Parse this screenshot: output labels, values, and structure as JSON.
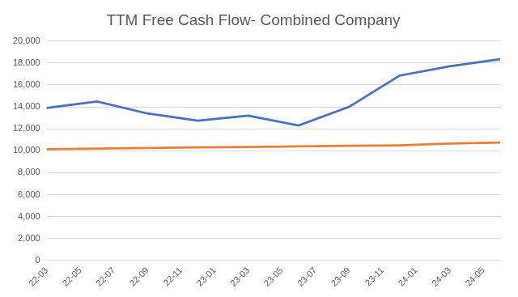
{
  "chart_data": {
    "type": "line",
    "title": "TTM Free Cash Flow- Combined Company",
    "categories": [
      "22-03",
      null,
      "22-05",
      null,
      "22-07",
      null,
      "22-09",
      null,
      "22-11",
      null,
      "23-01",
      null,
      "23-03",
      null,
      "23-05",
      null,
      "23-07",
      null,
      "23-09",
      null,
      "23-11",
      null,
      "24-01",
      null,
      "24-03",
      null,
      "24-05",
      null
    ],
    "series": [
      {
        "color": "#4472c4",
        "values": [
          13900,
          null,
          null,
          14500,
          null,
          null,
          13400,
          null,
          null,
          12750,
          null,
          null,
          13200,
          null,
          null,
          12300,
          null,
          null,
          14000,
          null,
          null,
          16850,
          null,
          null,
          17700,
          null,
          null,
          18350
        ]
      },
      {
        "color": "#ed7d31",
        "values": [
          10150,
          null,
          null,
          10200,
          null,
          null,
          10250,
          null,
          null,
          10300,
          null,
          null,
          10350,
          null,
          null,
          10400,
          null,
          null,
          10450,
          null,
          null,
          10500,
          null,
          null,
          10650,
          null,
          null,
          10750
        ]
      }
    ],
    "ylim": [
      0,
      20000
    ],
    "yticks": [
      0,
      {
        "value": 2000,
        "label": "2,000"
      },
      {
        "value": 4000,
        "label": "4,000"
      },
      {
        "value": 6000,
        "label": "6,000"
      },
      {
        "value": 8000,
        "label": "8,000"
      },
      {
        "value": 10000,
        "label": "10,000"
      },
      {
        "value": 12000,
        "label": "12,000"
      },
      {
        "value": 14000,
        "label": "14,000"
      },
      {
        "value": 16000,
        "label": "16,000"
      },
      {
        "value": 18000,
        "label": "18,000"
      },
      {
        "value": 20000,
        "label": "20,000"
      }
    ],
    "grid": true,
    "marker": "none"
  }
}
